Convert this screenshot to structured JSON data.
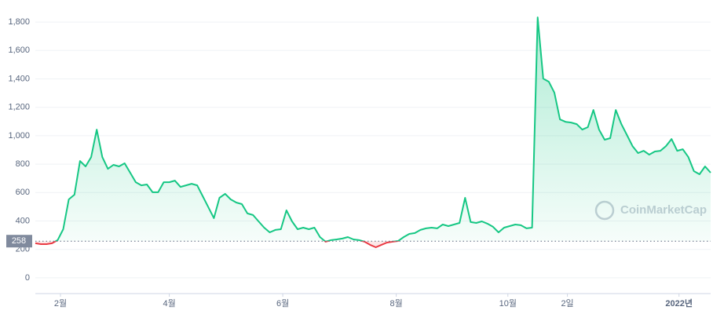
{
  "chart_data": {
    "type": "line",
    "x": [
      0,
      3,
      6,
      9,
      12,
      15,
      18,
      21,
      24,
      27,
      30,
      33,
      36,
      39,
      42,
      45,
      48,
      51,
      54,
      57,
      60,
      63,
      66,
      69,
      72,
      75,
      78,
      81,
      84,
      87,
      90,
      93,
      96,
      99,
      102,
      105,
      108,
      111,
      114,
      117,
      120,
      123,
      126,
      129,
      132,
      135,
      138,
      141,
      144,
      147,
      150,
      153,
      156,
      159,
      162,
      165,
      168,
      171,
      174,
      177,
      180,
      183,
      186,
      189,
      192,
      195,
      198,
      201,
      204,
      207,
      210,
      213,
      216,
      219,
      222,
      225,
      228,
      231,
      234,
      237,
      240,
      243,
      246,
      249,
      252,
      255,
      258,
      261,
      264,
      267,
      270,
      273,
      276,
      279,
      282,
      285,
      288,
      291,
      294,
      297,
      300,
      303,
      306,
      309,
      312,
      315,
      318,
      321,
      324,
      327,
      330,
      333,
      336,
      339,
      342,
      345,
      348,
      351,
      354,
      357,
      360,
      363
    ],
    "values": [
      243,
      237,
      237,
      243,
      265,
      342,
      552,
      585,
      822,
      784,
      850,
      1043,
      850,
      767,
      795,
      784,
      806,
      740,
      673,
      651,
      657,
      602,
      602,
      673,
      673,
      684,
      640,
      651,
      662,
      651,
      574,
      497,
      420,
      563,
      591,
      552,
      530,
      519,
      453,
      442,
      397,
      353,
      320,
      337,
      342,
      475,
      397,
      342,
      353,
      342,
      353,
      287,
      254,
      265,
      270,
      276,
      287,
      270,
      265,
      254,
      232,
      215,
      232,
      248,
      254,
      259,
      287,
      309,
      315,
      337,
      348,
      353,
      348,
      375,
      364,
      375,
      386,
      563,
      392,
      386,
      397,
      381,
      359,
      320,
      353,
      364,
      375,
      370,
      348,
      353,
      1833,
      1402,
      1380,
      1303,
      1115,
      1098,
      1093,
      1082,
      1043,
      1060,
      1181,
      1043,
      972,
      983,
      1181,
      1082,
      1005,
      927,
      878,
      894,
      867,
      889,
      894,
      927,
      977,
      894,
      905,
      850,
      751,
      729,
      784,
      740
    ],
    "baseline": 258,
    "up_color": "#16c784",
    "down_color": "#ea3943",
    "watermark": "CoinMarketCap",
    "xlim": [
      0,
      363
    ],
    "xticks": [
      {
        "value": 13.5,
        "label": "2월"
      },
      {
        "value": 72,
        "label": "4월"
      },
      {
        "value": 133,
        "label": "6월"
      },
      {
        "value": 194,
        "label": "8월"
      },
      {
        "value": 254,
        "label": "10월"
      },
      {
        "value": 286,
        "label": "2일"
      },
      {
        "value": 346,
        "label": "2022년"
      }
    ],
    "ylim": [
      -100,
      1900
    ],
    "yticks": [
      0,
      200,
      400,
      600,
      800,
      {
        "value": 1000,
        "label": "1,000"
      },
      {
        "value": 1200,
        "label": "1,200"
      },
      {
        "value": 1400,
        "label": "1,400"
      },
      {
        "value": 1600,
        "label": "1,600"
      },
      {
        "value": 1800,
        "label": "1,800"
      }
    ],
    "grid": true
  }
}
